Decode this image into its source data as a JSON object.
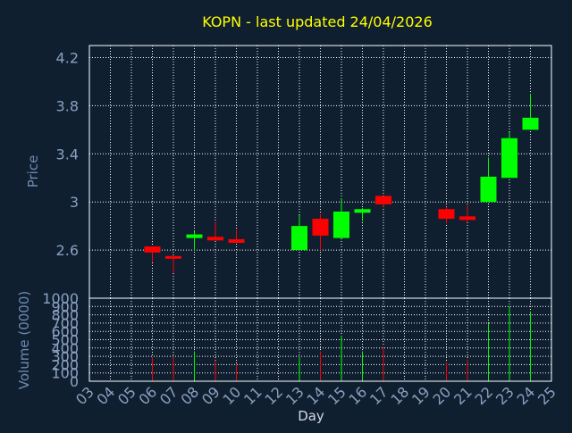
{
  "chart_data": [
    {
      "type": "candlestick",
      "title": "KOPN - last updated 24/04/2026",
      "ylabel": "Price",
      "ylim": [
        2.2,
        4.3
      ],
      "yticks": [
        2.6,
        3,
        3.4,
        3.8,
        4.2
      ],
      "ytick_labels": [
        "2.6",
        "3",
        "3.4",
        "3.8",
        "4.2"
      ],
      "grid": true,
      "days": [
        "06",
        "07",
        "08",
        "09",
        "10",
        "13",
        "14",
        "15",
        "16",
        "17",
        "20",
        "21",
        "22",
        "23",
        "24"
      ],
      "open": [
        2.63,
        2.55,
        2.7,
        2.71,
        2.69,
        2.6,
        2.86,
        2.7,
        2.91,
        3.05,
        2.94,
        2.88,
        3.0,
        3.2,
        3.6
      ],
      "close": [
        2.58,
        2.53,
        2.73,
        2.68,
        2.66,
        2.8,
        2.72,
        2.92,
        2.94,
        2.98,
        2.86,
        2.85,
        3.21,
        3.53,
        3.7
      ],
      "high": [
        2.63,
        2.55,
        2.76,
        2.83,
        2.77,
        2.89,
        2.9,
        3.03,
        2.95,
        3.05,
        2.96,
        2.97,
        3.37,
        3.58,
        3.9
      ],
      "low": [
        2.5,
        2.41,
        2.6,
        2.68,
        2.66,
        2.6,
        2.6,
        2.7,
        2.84,
        2.96,
        2.82,
        2.83,
        3.0,
        3.2,
        3.6
      ],
      "colors": {
        "up": "#00ff00",
        "down": "#ff0000"
      }
    },
    {
      "type": "bar",
      "xlabel": "Day",
      "ylabel": "Volume (0000)",
      "ylim": [
        0,
        1000
      ],
      "yticks": [
        0,
        100,
        200,
        300,
        400,
        500,
        600,
        700,
        800,
        900,
        1000
      ],
      "ytick_labels": [
        "0",
        "100",
        "200",
        "300",
        "400",
        "500",
        "600",
        "700",
        "800",
        "900",
        "1000"
      ],
      "x_ticks": [
        "03",
        "04",
        "05",
        "06",
        "07",
        "08",
        "09",
        "10",
        "11",
        "12",
        "13",
        "14",
        "15",
        "16",
        "17",
        "18",
        "19",
        "20",
        "21",
        "22",
        "23",
        "24",
        "25"
      ],
      "categories": [
        "06",
        "07",
        "08",
        "09",
        "10",
        "13",
        "14",
        "15",
        "16",
        "17",
        "20",
        "21",
        "22",
        "23",
        "24"
      ],
      "values": [
        290,
        290,
        360,
        250,
        210,
        290,
        360,
        550,
        360,
        420,
        230,
        260,
        700,
        900,
        840
      ],
      "grid": true
    }
  ],
  "theme": {
    "background": "#0f1f30",
    "title_color": "#ffff00",
    "axis_text_color": "#8aa0c0",
    "label_color": "#6f89b0",
    "frame_color": "#ffffff",
    "grid_color": "#ffffff"
  }
}
